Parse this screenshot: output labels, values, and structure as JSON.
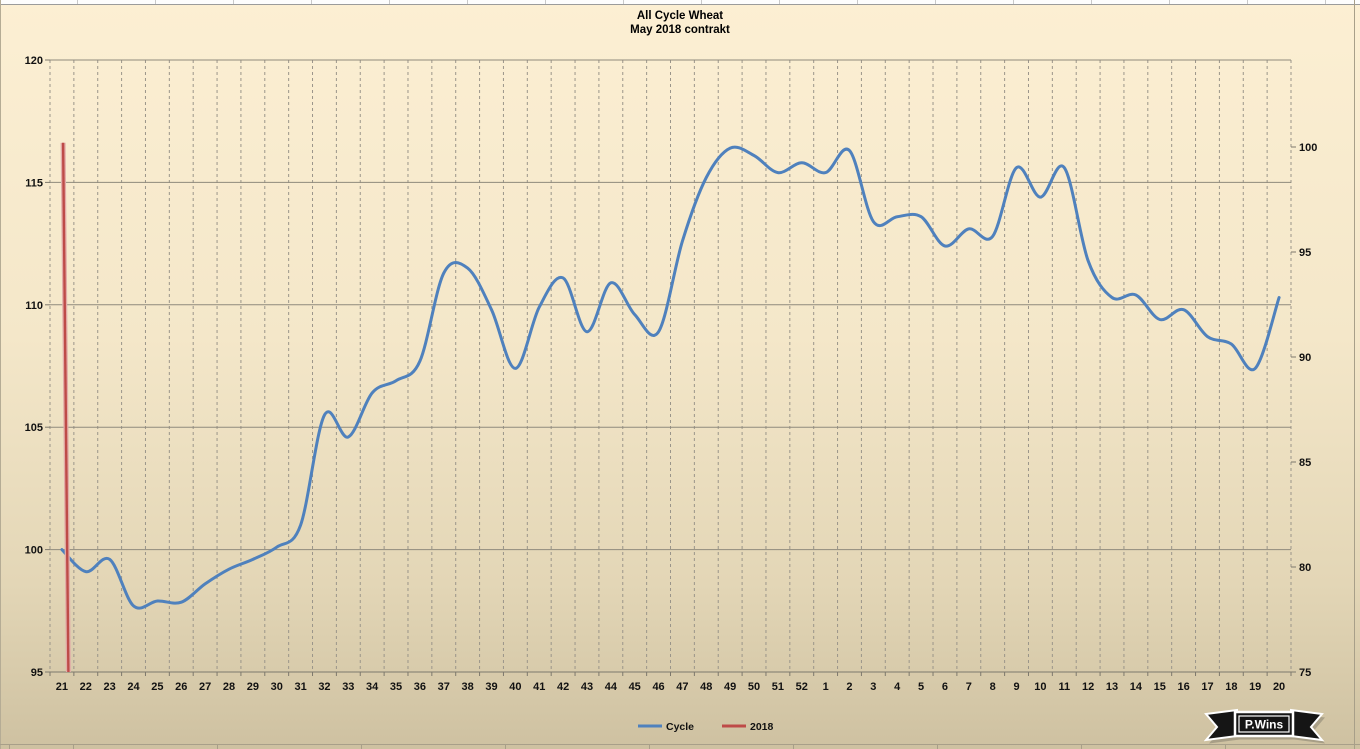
{
  "chart_data": {
    "type": "line",
    "title": "All Cycle Wheat",
    "subtitle": "May 2018 contrakt",
    "categories": [
      "21",
      "22",
      "23",
      "24",
      "25",
      "26",
      "27",
      "28",
      "29",
      "30",
      "31",
      "32",
      "33",
      "34",
      "35",
      "36",
      "37",
      "38",
      "39",
      "40",
      "41",
      "42",
      "43",
      "44",
      "45",
      "46",
      "47",
      "48",
      "49",
      "50",
      "51",
      "52",
      "1",
      "2",
      "3",
      "4",
      "5",
      "6",
      "7",
      "8",
      "9",
      "10",
      "11",
      "12",
      "13",
      "14",
      "15",
      "16",
      "17",
      "18",
      "19",
      "20"
    ],
    "x_axis_note": "week numbers, week 21 through 52 then 1 through 20",
    "left_axis": {
      "min": 95,
      "max": 120,
      "step": 5,
      "labels": [
        "95",
        "100",
        "105",
        "110",
        "115",
        "120"
      ]
    },
    "right_axis": {
      "min": 75,
      "max": 100,
      "step": 5,
      "labels": [
        "75",
        "80",
        "85",
        "90",
        "95",
        "100"
      ]
    },
    "grid": {
      "vertical": "dashed",
      "horizontal": "solid"
    },
    "legend": {
      "position": "bottom",
      "items": [
        "Cycle",
        "2018"
      ]
    },
    "series": [
      {
        "name": "Cycle",
        "color": "#4F81BD",
        "axis": "left",
        "smooth": true,
        "values": [
          100.0,
          99.1,
          99.6,
          97.7,
          97.9,
          97.85,
          98.6,
          99.2,
          99.6,
          100.1,
          101.0,
          105.5,
          104.6,
          106.4,
          106.9,
          107.7,
          111.3,
          111.5,
          109.8,
          107.4,
          109.9,
          111.1,
          108.9,
          110.9,
          109.6,
          108.9,
          112.6,
          115.2,
          116.4,
          116.1,
          115.4,
          115.8,
          115.4,
          116.3,
          113.4,
          113.6,
          113.6,
          112.4,
          113.1,
          112.8,
          115.6,
          114.4,
          115.6,
          111.8,
          110.3,
          110.4,
          109.4,
          109.8,
          108.7,
          108.4,
          107.4,
          110.3
        ]
      },
      {
        "name": "2018",
        "color": "#BE4B48",
        "halo": "#E2ACA8",
        "axis": "right",
        "points": [
          {
            "i": 0.05,
            "v": 100.2
          },
          {
            "i": 0.27,
            "v": 75.0
          }
        ]
      }
    ]
  },
  "logo": {
    "text": "P.Wins"
  }
}
